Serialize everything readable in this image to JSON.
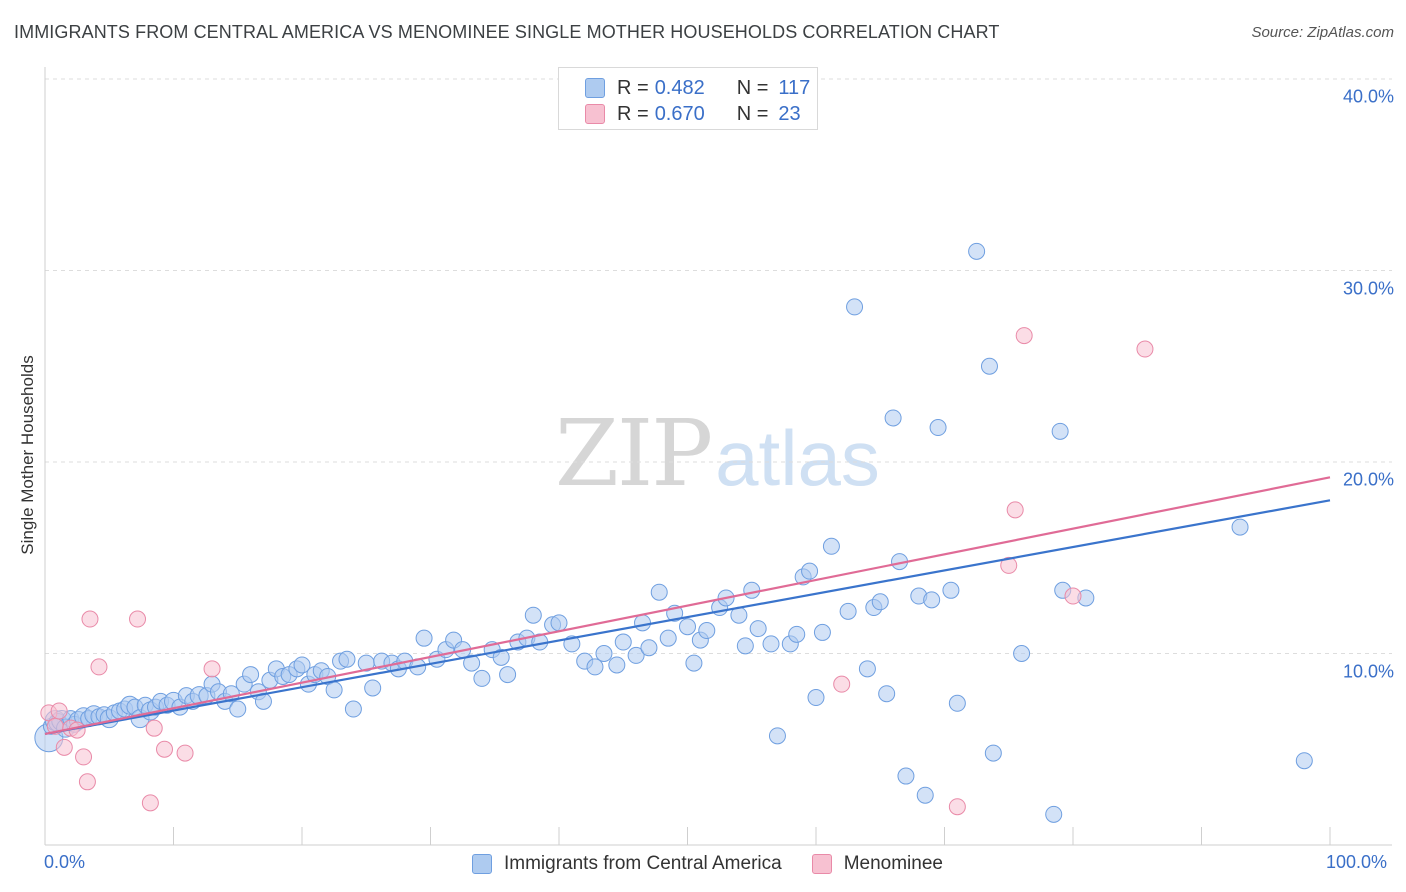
{
  "title": "IMMIGRANTS FROM CENTRAL AMERICA VS MENOMINEE SINGLE MOTHER HOUSEHOLDS CORRELATION CHART",
  "source": "Source: ZipAtlas.com",
  "watermark": {
    "zip": "ZIP",
    "atlas": "atlas"
  },
  "legend_top": [
    {
      "r_label": "R = ",
      "r_value": "0.482",
      "n_label": "N = ",
      "n_value": "117"
    },
    {
      "r_label": "R = ",
      "r_value": "0.670",
      "n_label": "N = ",
      "n_value": "23"
    }
  ],
  "legend_bottom": [
    {
      "label": "Immigrants from Central America"
    },
    {
      "label": "Menominee"
    }
  ],
  "colors": {
    "blue_fill": "#aecbf0",
    "blue_stroke": "#6f9fe0",
    "blue_line": "#3a74cc",
    "pink_fill": "#f7c1d1",
    "pink_stroke": "#e98aa8",
    "pink_line": "#e06b96",
    "tick_text": "#3a6fc8",
    "grid": "#dddddd"
  },
  "chart_data": {
    "type": "scatter",
    "title": "IMMIGRANTS FROM CENTRAL AMERICA VS MENOMINEE SINGLE MOTHER HOUSEHOLDS CORRELATION CHART",
    "xlabel": "",
    "ylabel": "Single Mother Households",
    "xlim": [
      0,
      100
    ],
    "ylim": [
      0,
      40
    ],
    "x_tick_labels": [
      "0.0%",
      "100.0%"
    ],
    "y_ticks": [
      10,
      20,
      30,
      40
    ],
    "y_tick_labels": [
      "10.0%",
      "20.0%",
      "30.0%",
      "40.0%"
    ],
    "grid": "horizontal dashed",
    "legend_position": "top-center",
    "series": [
      {
        "name": "Immigrants from Central America",
        "color": "#aecbf0",
        "r": 0.482,
        "n": 117,
        "trend": {
          "x": [
            0,
            100
          ],
          "y": [
            5.8,
            18.0
          ]
        },
        "points": [
          [
            0.3,
            5.6,
            14
          ],
          [
            0.5,
            6.2,
            8
          ],
          [
            0.8,
            6.5,
            10
          ],
          [
            1.0,
            6.4,
            9
          ],
          [
            1.3,
            6.5,
            10
          ],
          [
            1.6,
            6.1,
            9
          ],
          [
            2.0,
            6.6,
            8
          ],
          [
            2.3,
            6.3,
            8
          ],
          [
            2.6,
            6.5,
            9
          ],
          [
            3.0,
            6.7,
            9
          ],
          [
            3.4,
            6.6,
            8
          ],
          [
            3.8,
            6.8,
            9
          ],
          [
            4.2,
            6.7,
            8
          ],
          [
            4.6,
            6.8,
            8
          ],
          [
            5.0,
            6.6,
            9
          ],
          [
            5.4,
            6.9,
            8
          ],
          [
            5.8,
            7.0,
            8
          ],
          [
            6.2,
            7.1,
            8
          ],
          [
            6.6,
            7.3,
            9
          ],
          [
            7.0,
            7.2,
            8
          ],
          [
            7.4,
            6.6,
            9
          ],
          [
            7.8,
            7.3,
            8
          ],
          [
            8.2,
            7.0,
            9
          ],
          [
            8.6,
            7.2,
            8
          ],
          [
            9.0,
            7.5,
            8
          ],
          [
            9.5,
            7.3,
            8
          ],
          [
            10.0,
            7.5,
            9
          ],
          [
            10.5,
            7.2,
            8
          ],
          [
            11.0,
            7.8,
            8
          ],
          [
            11.5,
            7.5,
            8
          ],
          [
            12.0,
            7.8,
            9
          ],
          [
            12.6,
            7.8,
            8
          ],
          [
            13.0,
            8.4,
            8
          ],
          [
            13.5,
            8.0,
            8
          ],
          [
            14.0,
            7.5,
            8
          ],
          [
            14.5,
            7.9,
            8
          ],
          [
            15.0,
            7.1,
            8
          ],
          [
            15.5,
            8.4,
            8
          ],
          [
            16.0,
            8.9,
            8
          ],
          [
            16.6,
            8.0,
            8
          ],
          [
            17.0,
            7.5,
            8
          ],
          [
            17.5,
            8.6,
            8
          ],
          [
            18.0,
            9.2,
            8
          ],
          [
            18.5,
            8.8,
            8
          ],
          [
            19.0,
            8.9,
            8
          ],
          [
            19.6,
            9.2,
            8
          ],
          [
            20.0,
            9.4,
            8
          ],
          [
            20.5,
            8.4,
            8
          ],
          [
            21.0,
            8.9,
            8
          ],
          [
            21.5,
            9.1,
            8
          ],
          [
            22.0,
            8.8,
            8
          ],
          [
            22.5,
            8.1,
            8
          ],
          [
            23.0,
            9.6,
            8
          ],
          [
            23.5,
            9.7,
            8
          ],
          [
            24.0,
            7.1,
            8
          ],
          [
            25.0,
            9.5,
            8
          ],
          [
            25.5,
            8.2,
            8
          ],
          [
            26.2,
            9.6,
            8
          ],
          [
            27.0,
            9.5,
            8
          ],
          [
            27.5,
            9.2,
            8
          ],
          [
            28.0,
            9.6,
            8
          ],
          [
            29.0,
            9.3,
            8
          ],
          [
            29.5,
            10.8,
            8
          ],
          [
            30.5,
            9.7,
            8
          ],
          [
            31.2,
            10.2,
            8
          ],
          [
            31.8,
            10.7,
            8
          ],
          [
            32.5,
            10.2,
            8
          ],
          [
            33.2,
            9.5,
            8
          ],
          [
            34.0,
            8.7,
            8
          ],
          [
            34.8,
            10.2,
            8
          ],
          [
            35.5,
            9.8,
            8
          ],
          [
            36.0,
            8.9,
            8
          ],
          [
            36.8,
            10.6,
            8
          ],
          [
            37.5,
            10.8,
            8
          ],
          [
            38.0,
            12.0,
            8
          ],
          [
            38.5,
            10.6,
            8
          ],
          [
            39.5,
            11.5,
            8
          ],
          [
            40.0,
            11.6,
            8
          ],
          [
            41.0,
            10.5,
            8
          ],
          [
            42.0,
            9.6,
            8
          ],
          [
            42.8,
            9.3,
            8
          ],
          [
            43.5,
            10.0,
            8
          ],
          [
            44.5,
            9.4,
            8
          ],
          [
            45.0,
            10.6,
            8
          ],
          [
            46.0,
            9.9,
            8
          ],
          [
            46.5,
            11.6,
            8
          ],
          [
            47.0,
            10.3,
            8
          ],
          [
            47.8,
            13.2,
            8
          ],
          [
            48.5,
            10.8,
            8
          ],
          [
            49.0,
            12.1,
            8
          ],
          [
            50.0,
            11.4,
            8
          ],
          [
            50.5,
            9.5,
            8
          ],
          [
            51.0,
            10.7,
            8
          ],
          [
            51.5,
            11.2,
            8
          ],
          [
            52.5,
            12.4,
            8
          ],
          [
            53.0,
            12.9,
            8
          ],
          [
            54.0,
            12.0,
            8
          ],
          [
            54.5,
            10.4,
            8
          ],
          [
            55.0,
            13.3,
            8
          ],
          [
            55.5,
            11.3,
            8
          ],
          [
            56.5,
            10.5,
            8
          ],
          [
            57.0,
            5.7,
            8
          ],
          [
            58.0,
            10.5,
            8
          ],
          [
            58.5,
            11.0,
            8
          ],
          [
            59.0,
            14.0,
            8
          ],
          [
            59.5,
            14.3,
            8
          ],
          [
            60.0,
            7.7,
            8
          ],
          [
            60.5,
            11.1,
            8
          ],
          [
            61.2,
            15.6,
            8
          ],
          [
            62.5,
            12.2,
            8
          ],
          [
            63.0,
            28.1,
            8
          ],
          [
            64.0,
            9.2,
            8
          ],
          [
            64.5,
            12.4,
            8
          ],
          [
            65.0,
            12.7,
            8
          ],
          [
            65.5,
            7.9,
            8
          ],
          [
            66.0,
            22.3,
            8
          ],
          [
            66.5,
            14.8,
            8
          ],
          [
            67.0,
            3.6,
            8
          ],
          [
            68.0,
            13.0,
            8
          ],
          [
            68.5,
            2.6,
            8
          ],
          [
            69.0,
            12.8,
            8
          ],
          [
            69.5,
            21.8,
            8
          ],
          [
            70.5,
            13.3,
            8
          ],
          [
            71.0,
            7.4,
            8
          ],
          [
            72.5,
            31.0,
            8
          ],
          [
            73.5,
            25.0,
            8
          ],
          [
            73.8,
            4.8,
            8
          ],
          [
            76.0,
            10.0,
            8
          ],
          [
            78.5,
            1.6,
            8
          ],
          [
            79.0,
            21.6,
            8
          ],
          [
            79.2,
            13.3,
            8
          ],
          [
            81.0,
            12.9,
            8
          ],
          [
            93.0,
            16.6,
            8
          ],
          [
            98.0,
            4.4,
            8
          ]
        ]
      },
      {
        "name": "Menominee",
        "color": "#f7c1d1",
        "r": 0.67,
        "n": 23,
        "trend": {
          "x": [
            0,
            100
          ],
          "y": [
            5.8,
            19.2
          ]
        },
        "points": [
          [
            0.3,
            6.9,
            8
          ],
          [
            0.8,
            6.2,
            8
          ],
          [
            1.1,
            7.0,
            8
          ],
          [
            1.5,
            5.1,
            8
          ],
          [
            2.0,
            6.1,
            8
          ],
          [
            2.5,
            6.0,
            8
          ],
          [
            3.0,
            4.6,
            8
          ],
          [
            3.3,
            3.3,
            8
          ],
          [
            3.5,
            11.8,
            8
          ],
          [
            4.2,
            9.3,
            8
          ],
          [
            7.2,
            11.8,
            8
          ],
          [
            8.2,
            2.2,
            8
          ],
          [
            8.5,
            6.1,
            8
          ],
          [
            9.3,
            5.0,
            8
          ],
          [
            10.9,
            4.8,
            8
          ],
          [
            13.0,
            9.2,
            8
          ],
          [
            62.0,
            8.4,
            8
          ],
          [
            71.0,
            2.0,
            8
          ],
          [
            75.0,
            14.6,
            8
          ],
          [
            75.5,
            17.5,
            8
          ],
          [
            76.2,
            26.6,
            8
          ],
          [
            80.0,
            13.0,
            8
          ],
          [
            85.6,
            25.9,
            8
          ]
        ]
      }
    ]
  }
}
